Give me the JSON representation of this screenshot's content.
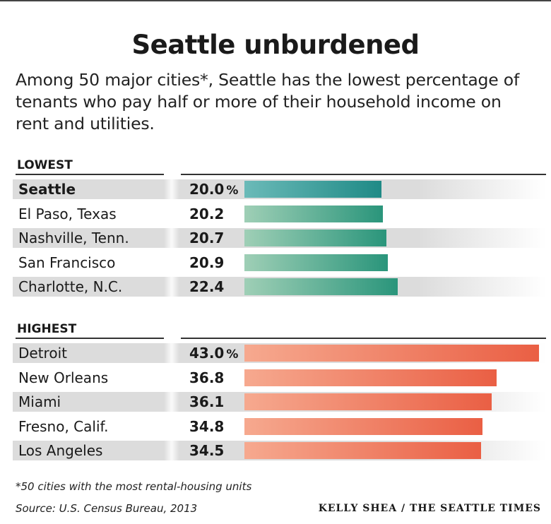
{
  "header": {
    "title": "Seattle unburdened",
    "subtitle": "Among 50 major cities*, Seattle has the lowest percentage of tenants who pay half or more of their household income on rent and utilities."
  },
  "chart_data": {
    "type": "bar",
    "orientation": "horizontal",
    "unit": "%",
    "xlim": [
      0,
      43.0
    ],
    "grid": false,
    "groups": [
      {
        "label": "LOWEST",
        "color_start": "#9fcfb6",
        "color_end": "#2a957b",
        "rows": [
          {
            "city": "Seattle",
            "value": 20.0,
            "value_label": "20.0",
            "show_pct": true,
            "highlight": true
          },
          {
            "city": "El Paso, Texas",
            "value": 20.2,
            "value_label": "20.2",
            "show_pct": false,
            "highlight": false
          },
          {
            "city": "Nashville, Tenn.",
            "value": 20.7,
            "value_label": "20.7",
            "show_pct": false,
            "highlight": false
          },
          {
            "city": "San Francisco",
            "value": 20.9,
            "value_label": "20.9",
            "show_pct": false,
            "highlight": false
          },
          {
            "city": "Charlotte, N.C.",
            "value": 22.4,
            "value_label": "22.4",
            "show_pct": false,
            "highlight": false
          }
        ]
      },
      {
        "label": "HIGHEST",
        "color_start": "#f6a98f",
        "color_end": "#ea5f44",
        "rows": [
          {
            "city": "Detroit",
            "value": 43.0,
            "value_label": "43.0",
            "show_pct": true,
            "highlight": false
          },
          {
            "city": "New Orleans",
            "value": 36.8,
            "value_label": "36.8",
            "show_pct": false,
            "highlight": false
          },
          {
            "city": "Miami",
            "value": 36.1,
            "value_label": "36.1",
            "show_pct": false,
            "highlight": false
          },
          {
            "city": "Fresno, Calif.",
            "value": 34.8,
            "value_label": "34.8",
            "show_pct": false,
            "highlight": false
          },
          {
            "city": "Los Angeles",
            "value": 34.5,
            "value_label": "34.5",
            "show_pct": false,
            "highlight": false
          }
        ]
      }
    ]
  },
  "footer": {
    "footnote": "*50 cities with the most rental-housing units",
    "source": "Source: U.S. Census Bureau, 2013",
    "credit": "KELLY SHEA / THE SEATTLE TIMES"
  }
}
